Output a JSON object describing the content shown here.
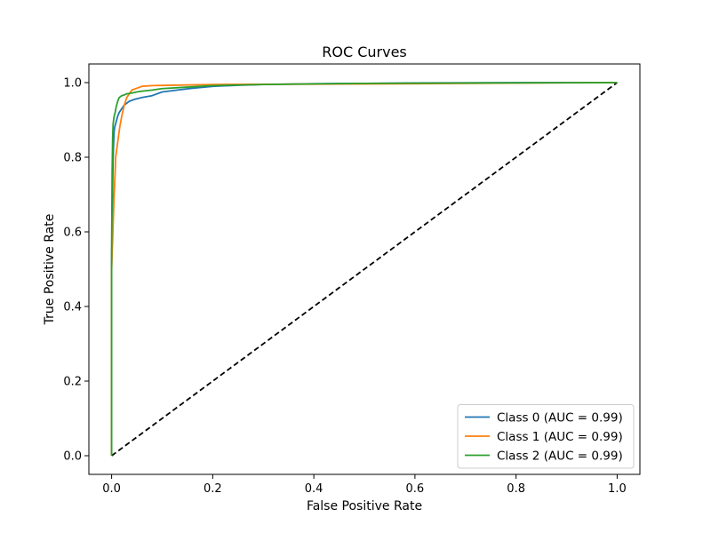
{
  "chart_data": {
    "type": "line",
    "title": "ROC Curves",
    "xlabel": "False Positive Rate",
    "ylabel": "True Positive Rate",
    "xlim": [
      -0.045,
      1.045
    ],
    "ylim": [
      -0.05,
      1.05
    ],
    "xticks": [
      0.0,
      0.2,
      0.4,
      0.6,
      0.8,
      1.0
    ],
    "yticks": [
      0.0,
      0.2,
      0.4,
      0.6,
      0.8,
      1.0
    ],
    "xtick_labels": [
      "0.0",
      "0.2",
      "0.4",
      "0.6",
      "0.8",
      "1.0"
    ],
    "ytick_labels": [
      "0.0",
      "0.2",
      "0.4",
      "0.6",
      "0.8",
      "1.0"
    ],
    "grid": false,
    "legend_position": "bottom-right",
    "series": [
      {
        "name": "Class 0 (AUC = 0.99)",
        "color": "#1f77b4",
        "style": "solid",
        "x": [
          0.0,
          0.0,
          0.002,
          0.003,
          0.004,
          0.005,
          0.006,
          0.008,
          0.01,
          0.012,
          0.015,
          0.02,
          0.025,
          0.03,
          0.035,
          0.045,
          0.06,
          0.08,
          0.1,
          0.13,
          0.16,
          0.2,
          0.25,
          0.3,
          0.4,
          0.5,
          0.6,
          0.8,
          1.0
        ],
        "y": [
          0.0,
          0.52,
          0.72,
          0.8,
          0.84,
          0.87,
          0.88,
          0.89,
          0.9,
          0.91,
          0.92,
          0.93,
          0.94,
          0.945,
          0.95,
          0.955,
          0.96,
          0.965,
          0.975,
          0.98,
          0.985,
          0.99,
          0.993,
          0.995,
          0.997,
          0.998,
          0.999,
          1.0,
          1.0
        ]
      },
      {
        "name": "Class 1 (AUC = 0.99)",
        "color": "#ff7f0e",
        "style": "solid",
        "x": [
          0.0,
          0.0,
          0.003,
          0.005,
          0.007,
          0.008,
          0.01,
          0.012,
          0.014,
          0.016,
          0.02,
          0.025,
          0.03,
          0.035,
          0.04,
          0.05,
          0.06,
          0.08,
          0.12,
          0.2,
          0.4,
          0.6,
          0.8,
          1.0
        ],
        "y": [
          0.0,
          0.5,
          0.62,
          0.7,
          0.76,
          0.8,
          0.82,
          0.84,
          0.86,
          0.88,
          0.91,
          0.94,
          0.96,
          0.97,
          0.98,
          0.985,
          0.99,
          0.992,
          0.993,
          0.995,
          0.996,
          0.997,
          0.999,
          1.0
        ]
      },
      {
        "name": "Class 2 (AUC = 0.99)",
        "color": "#2ca02c",
        "style": "solid",
        "x": [
          0.0,
          0.0,
          0.001,
          0.002,
          0.003,
          0.005,
          0.007,
          0.009,
          0.012,
          0.015,
          0.02,
          0.025,
          0.03,
          0.04,
          0.05,
          0.06,
          0.08,
          0.1,
          0.15,
          0.2,
          0.3,
          0.5,
          0.7,
          1.0
        ],
        "y": [
          0.0,
          0.55,
          0.76,
          0.85,
          0.89,
          0.91,
          0.92,
          0.935,
          0.95,
          0.96,
          0.965,
          0.967,
          0.97,
          0.972,
          0.975,
          0.977,
          0.98,
          0.984,
          0.988,
          0.992,
          0.995,
          0.998,
          0.999,
          1.0
        ]
      },
      {
        "name": "",
        "color": "#000000",
        "style": "dashed",
        "x": [
          0.0,
          1.0
        ],
        "y": [
          0.0,
          1.0
        ]
      }
    ]
  }
}
